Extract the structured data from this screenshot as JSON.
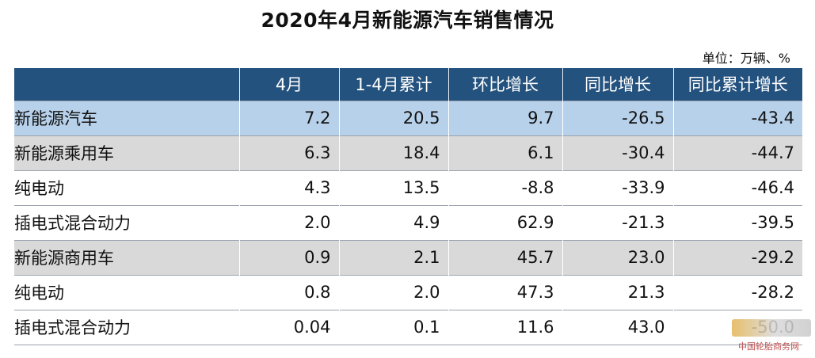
{
  "title": "2020年4月新能源汽车销售情况",
  "unit_label": "单位：万辆、%",
  "columns": [
    "",
    "4月",
    "1-4月累计",
    "环比增长",
    "同比增长",
    "同比累计增长"
  ],
  "rows": [
    {
      "label": "新能源汽车",
      "values": [
        "7.2",
        "20.5",
        "9.7",
        "-26.5",
        "-43.4"
      ]
    },
    {
      "label": "新能源乘用车",
      "values": [
        "6.3",
        "18.4",
        "6.1",
        "-30.4",
        "-44.7"
      ]
    },
    {
      "label": "纯电动",
      "values": [
        "4.3",
        "13.5",
        "-8.8",
        "-33.9",
        "-46.4"
      ]
    },
    {
      "label": "插电式混合动力",
      "values": [
        "2.0",
        "4.9",
        "62.9",
        "-21.3",
        "-39.5"
      ]
    },
    {
      "label": "新能源商用车",
      "values": [
        "0.9",
        "2.1",
        "45.7",
        "23.0",
        "-29.2"
      ]
    },
    {
      "label": "纯电动",
      "values": [
        "0.8",
        "2.0",
        "47.3",
        "21.3",
        "-28.2"
      ]
    },
    {
      "label": "插电式混合动力",
      "values": [
        "0.04",
        "0.1",
        "11.6",
        "43.0",
        "-50.0"
      ]
    }
  ],
  "watermark": {
    "text": "中国轮胎商务网"
  },
  "colors": {
    "header_bg": "#24527e",
    "total_row_bg": "#b8d1ea",
    "category_row_bg": "#d9d9d9",
    "sub_row_bg": "#ffffff"
  }
}
